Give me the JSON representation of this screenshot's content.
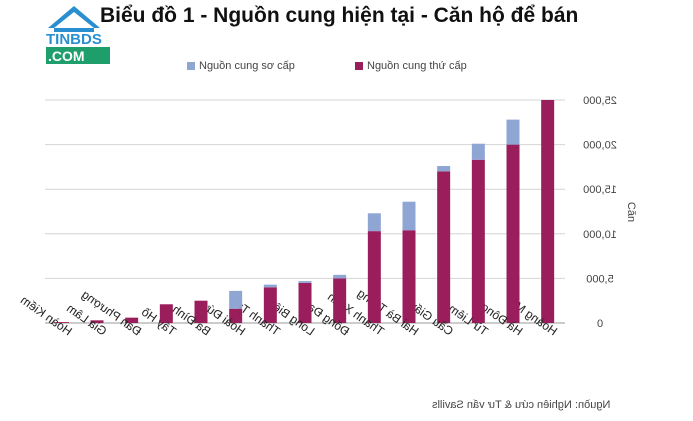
{
  "logo": {
    "line1": "TINBDS",
    "line2": ".COM"
  },
  "chart_data": {
    "type": "bar",
    "stacked": true,
    "mirrored": true,
    "title": "Biểu đồ 1 - Nguồn cung hiện tại - Căn hộ để bán",
    "ylabel": "Căn",
    "ylim": [
      0,
      25000
    ],
    "yticks": [
      "0",
      "5,000",
      "10,000",
      "15,000",
      "20,000",
      "25,000"
    ],
    "categories": [
      "Hoàng Mai",
      "Hà Đông",
      "Từ Liêm",
      "Cầu Giấy",
      "Hai Bà Trưng",
      "Thanh Xuân",
      "Đống Đa",
      "Long Biên",
      "Thanh Trì",
      "Hoài Đức",
      "Ba Đình",
      "Tây Hồ",
      "Đan Phượng",
      "Gia Lâm",
      "Hoàn Kiếm"
    ],
    "series": [
      {
        "name": "Nguồn cung thứ cấp",
        "color": "#9b1e5c",
        "values": [
          25000,
          20000,
          18300,
          17000,
          10400,
          10300,
          5000,
          4500,
          4000,
          1600,
          2500,
          2100,
          600,
          300,
          100
        ]
      },
      {
        "name": "Nguồn cung sơ cấp",
        "color": "#8fa6d4",
        "values": [
          0,
          2800,
          1800,
          600,
          3200,
          2000,
          400,
          200,
          300,
          2000,
          0,
          0,
          0,
          0,
          0
        ]
      }
    ],
    "legend": "top",
    "grid": true
  },
  "source": "Nguồn: Nghiên cứu & Tư vấn Savills"
}
